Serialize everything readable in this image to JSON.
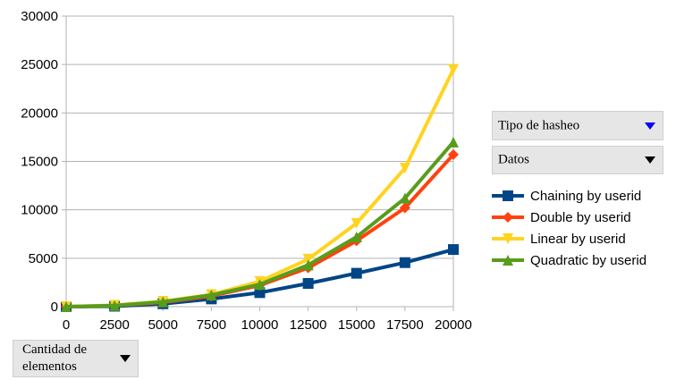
{
  "chart_data": {
    "type": "line",
    "title": "",
    "xlabel": "",
    "ylabel": "",
    "x": [
      0,
      2500,
      5000,
      7500,
      10000,
      12500,
      15000,
      17500,
      20000
    ],
    "xlim": [
      0,
      20000
    ],
    "ylim": [
      0,
      30000
    ],
    "y_ticks": [
      0,
      5000,
      10000,
      15000,
      20000,
      25000,
      30000
    ],
    "grid": "horizontal",
    "legend_position": "right",
    "series": [
      {
        "name": "Chaining by userid",
        "color": "#004586",
        "marker": "square",
        "values": [
          0,
          50,
          300,
          800,
          1450,
          2400,
          3450,
          4550,
          5900
        ]
      },
      {
        "name": "Double by userid",
        "color": "#ff420e",
        "marker": "diamond",
        "values": [
          0,
          100,
          450,
          1100,
          2200,
          4000,
          6800,
          10200,
          15700
        ]
      },
      {
        "name": "Linear by userid",
        "color": "#ffd320",
        "marker": "triangle-down",
        "values": [
          0,
          150,
          550,
          1250,
          2600,
          4900,
          8600,
          14300,
          24500
        ]
      },
      {
        "name": "Quadratic by userid",
        "color": "#579d1c",
        "marker": "triangle-up",
        "values": [
          0,
          120,
          500,
          1200,
          2300,
          4300,
          7200,
          11200,
          17000
        ]
      }
    ]
  },
  "controls": {
    "series_field": "Tipo de hasheo",
    "data_field": "Datos",
    "category_field": "Cantidad de elementos"
  }
}
